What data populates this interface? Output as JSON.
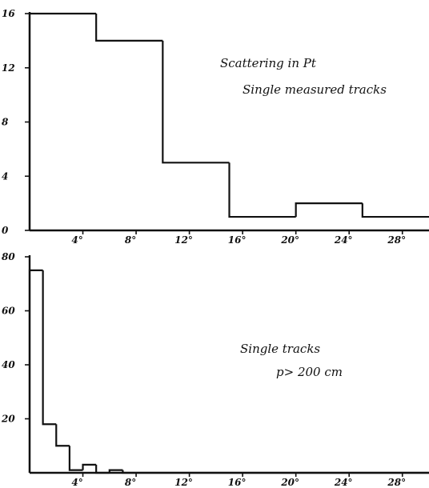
{
  "chart_data": [
    {
      "type": "histogram",
      "annotations": [
        "Scattering in Pt",
        "Single measured tracks"
      ],
      "x_unit": "degrees",
      "xlim": [
        0,
        30
      ],
      "ylim": [
        0,
        16
      ],
      "x_tick_labels": [
        "4°",
        "8°",
        "12°",
        "16°",
        "20°",
        "24°",
        "28°"
      ],
      "y_tick_labels": [
        "0",
        "4",
        "8",
        "12",
        "16"
      ],
      "bins": [
        {
          "x_start": 0,
          "x_end": 5,
          "value": 16
        },
        {
          "x_start": 5,
          "x_end": 10,
          "value": 14
        },
        {
          "x_start": 10,
          "x_end": 15,
          "value": 5
        },
        {
          "x_start": 15,
          "x_end": 20,
          "value": 1
        },
        {
          "x_start": 20,
          "x_end": 25,
          "value": 2
        },
        {
          "x_start": 25,
          "x_end": 30,
          "value": 1
        }
      ]
    },
    {
      "type": "histogram",
      "annotations": [
        "Single tracks",
        "p> 200 cm"
      ],
      "x_unit": "degrees",
      "xlim": [
        0,
        30
      ],
      "ylim": [
        0,
        80
      ],
      "x_tick_labels": [
        "4°",
        "8°",
        "12°",
        "16°",
        "20°",
        "24°",
        "28°"
      ],
      "y_tick_labels": [
        "20",
        "40",
        "60",
        "80"
      ],
      "bins": [
        {
          "x_start": 0,
          "x_end": 1,
          "value": 75
        },
        {
          "x_start": 1,
          "x_end": 2,
          "value": 18
        },
        {
          "x_start": 2,
          "x_end": 3,
          "value": 10
        },
        {
          "x_start": 3,
          "x_end": 4,
          "value": 1
        },
        {
          "x_start": 4,
          "x_end": 5,
          "value": 3
        },
        {
          "x_start": 5,
          "x_end": 6,
          "value": 0
        },
        {
          "x_start": 6,
          "x_end": 7,
          "value": 1
        },
        {
          "x_start": 7,
          "x_end": 30,
          "value": 0
        }
      ]
    }
  ]
}
